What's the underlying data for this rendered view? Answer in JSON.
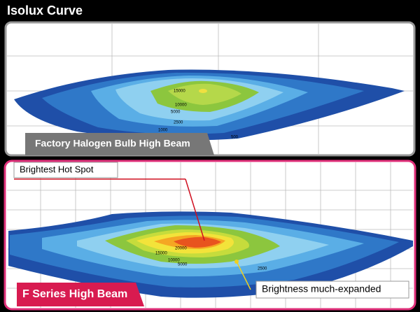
{
  "header": {
    "title": "Isolux Curve"
  },
  "top_panel": {
    "label": "Factory Halogen Bulb High Beam",
    "contour_labels": [
      "15000",
      "10000",
      "5000",
      "2500",
      "1000",
      "500"
    ]
  },
  "bottom_panel": {
    "label": "F Series High Beam",
    "callouts": [
      "Brightest Hot Spot",
      "Brightness much-expanded"
    ],
    "contour_labels": [
      "20000",
      "15000",
      "10000",
      "5000",
      "2500"
    ]
  }
}
